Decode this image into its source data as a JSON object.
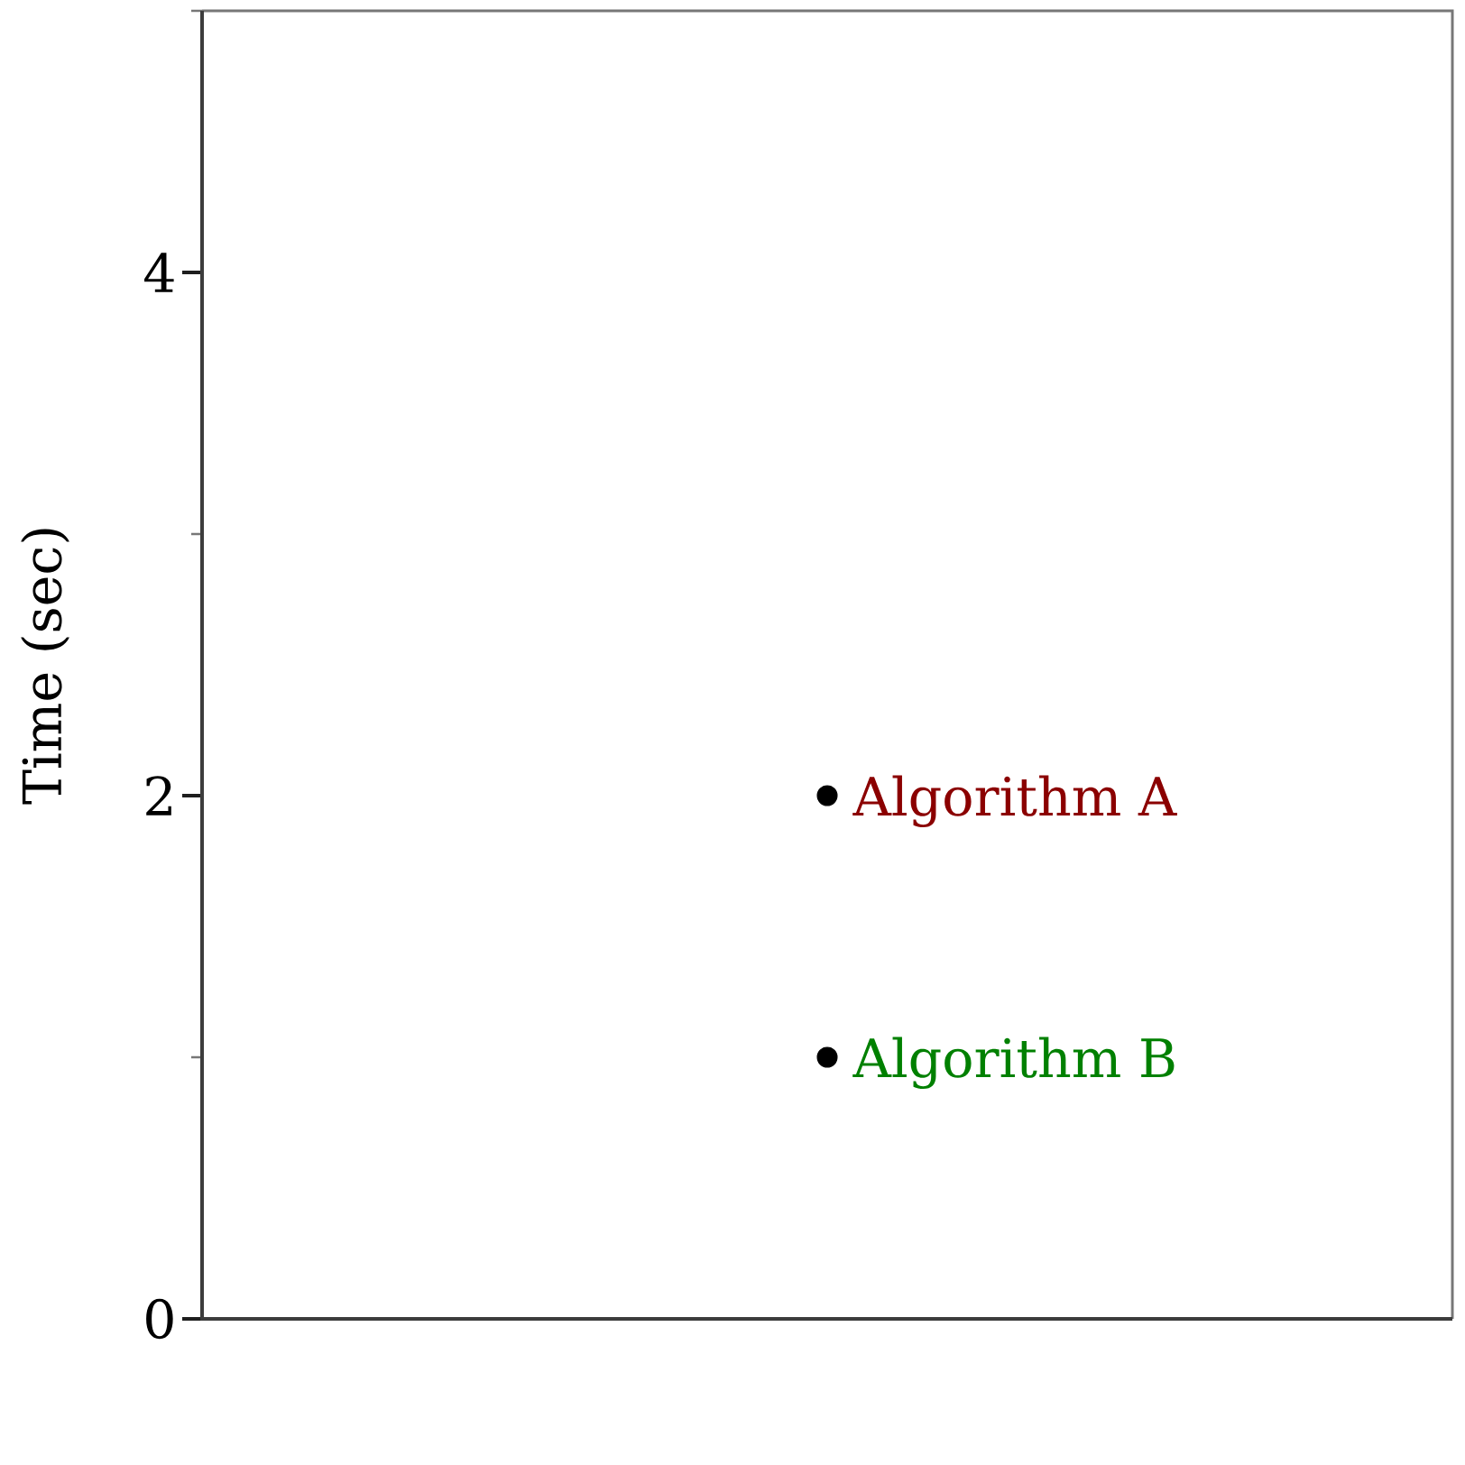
{
  "chart_data": {
    "type": "scatter",
    "ylabel": "Time (sec)",
    "categories": [
      null
    ],
    "series": [
      {
        "name": "Algorithm A",
        "color": "#000000",
        "values": [
          2
        ]
      },
      {
        "name": "Algorithm B",
        "color": "#000000",
        "values": [
          1
        ]
      }
    ],
    "ylim": [
      0,
      5
    ],
    "yticks": [
      0,
      {
        "value": 1,
        "label": null
      },
      2,
      {
        "value": 3,
        "label": null
      },
      4,
      {
        "value": 5,
        "label": null
      }
    ],
    "marker": "circle",
    "tick_labels": "y"
  }
}
